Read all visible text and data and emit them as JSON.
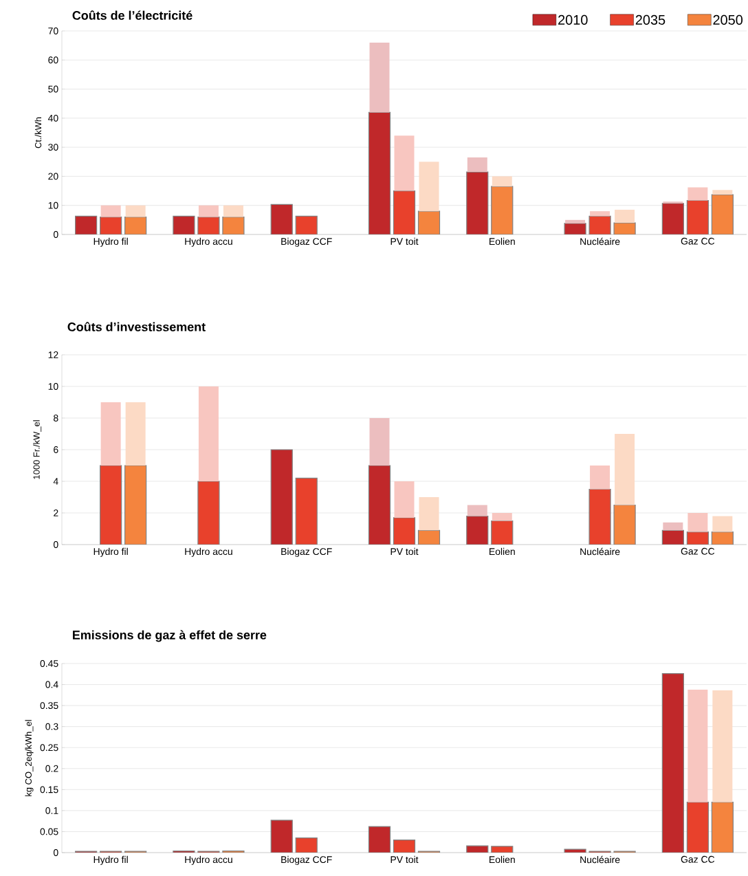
{
  "chart_data": [
    {
      "type": "bar",
      "title": "Coûts de l’électricité",
      "ylabel": "Ct./kWh",
      "categories": [
        "Hydro fil",
        "Hydro accu",
        "Biogaz CCF",
        "PV toit",
        "Eolien",
        "Nucléaire",
        "Gaz CC"
      ],
      "ylim": [
        0,
        70
      ],
      "yticks": [
        0,
        10,
        20,
        30,
        40,
        50,
        60,
        70
      ],
      "grid": "y",
      "legend": "top right",
      "series": [
        {
          "name": "2010",
          "color": "#c0282a",
          "values": [
            6.3,
            6.3,
            10.3,
            42,
            21.5,
            3.8,
            10.7
          ],
          "errors": [
            null,
            null,
            null,
            [
              42,
              66
            ],
            [
              21.5,
              26.5
            ],
            [
              3.8,
              5
            ],
            [
              10.7,
              11.3
            ]
          ]
        },
        {
          "name": "2035",
          "color": "#e8412c",
          "colors": [
            "#e8412c",
            "#e8412c",
            "#e8412c",
            "#e8412c",
            "#f4843e",
            "#e8412c",
            "#e8412c"
          ],
          "values": [
            6,
            6,
            6.3,
            15,
            16.5,
            6.3,
            11.7
          ],
          "errors": [
            [
              6,
              10
            ],
            [
              6,
              10
            ],
            null,
            [
              15,
              34
            ],
            [
              16.5,
              20
            ],
            [
              6.3,
              8
            ],
            [
              11.7,
              16.2
            ]
          ]
        },
        {
          "name": "2050",
          "color": "#f4843e",
          "values": [
            6,
            6,
            null,
            8,
            null,
            4,
            13.7
          ],
          "errors": [
            [
              6,
              10
            ],
            [
              6,
              10
            ],
            null,
            [
              8,
              25
            ],
            null,
            [
              4,
              8.5
            ],
            [
              13.7,
              15.3
            ]
          ]
        }
      ]
    },
    {
      "type": "bar",
      "title": "Coûts d’investissement",
      "ylabel": "1000 Fr./kW_el",
      "categories": [
        "Hydro fil",
        "Hydro accu",
        "Biogaz CCF",
        "PV toit",
        "Eolien",
        "Nucléaire",
        "Gaz CC"
      ],
      "ylim": [
        0,
        12
      ],
      "yticks": [
        0,
        2,
        4,
        6,
        8,
        10,
        12
      ],
      "grid": "y",
      "series": [
        {
          "color": "#c0282a",
          "values": [
            null,
            null,
            6,
            5,
            1.8,
            null,
            0.9
          ],
          "errors": [
            null,
            null,
            null,
            [
              5,
              8
            ],
            [
              1.8,
              2.5
            ],
            null,
            [
              0.9,
              1.4
            ]
          ]
        },
        {
          "color": "#e8412c",
          "values": [
            5,
            4,
            4.2,
            1.7,
            1.5,
            3.5,
            0.8
          ],
          "errors": [
            [
              5,
              9
            ],
            [
              4,
              10
            ],
            null,
            [
              1.7,
              4
            ],
            [
              1.5,
              2
            ],
            [
              3.5,
              5
            ],
            [
              0.8,
              2
            ]
          ]
        },
        {
          "color": "#f4843e",
          "values": [
            5,
            null,
            null,
            0.9,
            null,
            2.5,
            0.8
          ],
          "errors": [
            [
              5,
              9
            ],
            null,
            null,
            [
              0.9,
              3
            ],
            null,
            [
              2.5,
              7
            ],
            [
              0.8,
              1.8
            ]
          ]
        }
      ]
    },
    {
      "type": "bar",
      "title": "Emissions de gaz à effet de serre",
      "ylabel": "kg CO_2eq/kWh_el",
      "categories": [
        "Hydro fil",
        "Hydro accu",
        "Biogaz CCF",
        "PV toit",
        "Eolien",
        "Nucléaire",
        "Gaz CC"
      ],
      "ylim": [
        0,
        0.45
      ],
      "yticks": [
        0,
        0.05,
        0.1,
        0.15,
        0.2,
        0.25,
        0.3,
        0.35,
        0.4,
        0.45
      ],
      "grid": "y",
      "series": [
        {
          "color": "#c0282a",
          "values": [
            0.003,
            0.004,
            0.077,
            0.062,
            0.016,
            0.008,
            0.426
          ]
        },
        {
          "color": "#e8412c",
          "values": [
            0.003,
            0.003,
            0.035,
            0.03,
            0.015,
            0.003,
            0.12
          ],
          "errors": [
            null,
            null,
            null,
            null,
            null,
            null,
            [
              0.12,
              0.388
            ]
          ]
        },
        {
          "color": "#f4843e",
          "values": [
            0.003,
            0.004,
            null,
            0.003,
            null,
            0.003,
            0.12
          ],
          "errors": [
            null,
            null,
            null,
            null,
            null,
            null,
            [
              0.12,
              0.386
            ]
          ]
        }
      ]
    }
  ]
}
